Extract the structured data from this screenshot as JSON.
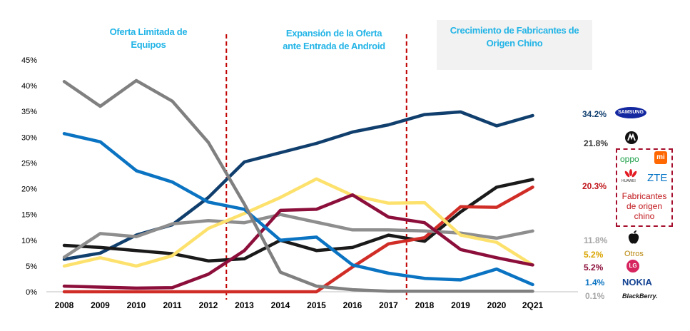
{
  "phases": [
    {
      "label": "Oferta Limitada de Equipos"
    },
    {
      "label": "Expansión de la Oferta ante Entrada de Android"
    },
    {
      "label": "Crecimiento de Fabricantes de Origen Chino"
    }
  ],
  "chart_data": {
    "type": "line",
    "categories": [
      "2008",
      "2009",
      "2010",
      "2011",
      "2012",
      "2013",
      "2014",
      "2015",
      "2016",
      "2017",
      "2018",
      "2019",
      "2020",
      "2Q21"
    ],
    "y_ticks": [
      "0%",
      "5%",
      "10%",
      "15%",
      "20%",
      "25%",
      "30%",
      "35%",
      "40%",
      "45%"
    ],
    "ylim": [
      0,
      45
    ],
    "grid": false,
    "phase_dividers_after": [
      "2012",
      "2017"
    ],
    "series": [
      {
        "brand": "Samsung",
        "color": "#103f6e",
        "end_label": "34.2%",
        "values": [
          6.3,
          7.5,
          11,
          13,
          18.3,
          25.2,
          27,
          28.8,
          31,
          32.4,
          34.4,
          34.9,
          32.2,
          34.2
        ]
      },
      {
        "brand": "Motorola",
        "color": "#1a1a1a",
        "end_label": "21.8%",
        "values": [
          9,
          8.6,
          8,
          7.4,
          6,
          6.4,
          10,
          8,
          8.6,
          11,
          9.8,
          15.5,
          20.3,
          21.8
        ]
      },
      {
        "brand": "Chinese manufacturers",
        "color": "#d02d27",
        "end_label": "20.3%",
        "values": [
          0,
          0,
          0,
          0,
          0,
          0,
          0,
          0,
          4.8,
          9.3,
          10.5,
          16.5,
          16.4,
          20.3
        ]
      },
      {
        "brand": "Apple",
        "color": "#8e8e8e",
        "end_label": "11.8%",
        "values": [
          6.7,
          11.3,
          10.7,
          13.2,
          13.8,
          13.4,
          15,
          13.5,
          12,
          12,
          11.8,
          11.4,
          10.4,
          11.8
        ]
      },
      {
        "brand": "Otros",
        "color": "#fde16d",
        "end_label": "5.2%",
        "values": [
          5,
          6.6,
          5,
          7,
          12.3,
          15.2,
          18.3,
          21.9,
          18.7,
          17.2,
          17.3,
          11,
          9.6,
          5.2
        ]
      },
      {
        "brand": "LG",
        "color": "#8c0e3a",
        "end_label": "5.2%",
        "values": [
          1.1,
          0.9,
          0.7,
          0.8,
          3.4,
          8,
          15.8,
          16,
          18.8,
          14.5,
          13.4,
          8.2,
          6.6,
          5.2
        ]
      },
      {
        "brand": "Nokia",
        "color": "#0a73c2",
        "end_label": "1.4%",
        "values": [
          30.7,
          29.1,
          23.5,
          21.3,
          17.4,
          16,
          10,
          10.6,
          5.2,
          3.6,
          2.6,
          2.3,
          4.4,
          1.4
        ]
      },
      {
        "brand": "BlackBerry",
        "color": "#808080",
        "end_label": "0.1%",
        "values": [
          40.8,
          36,
          41,
          37,
          29,
          17,
          3.8,
          1.1,
          0.4,
          0.1,
          0.1,
          0.1,
          0.1,
          0.1
        ]
      }
    ]
  },
  "brands": {
    "samsung": "SAMSUNG",
    "xiaomi": "mi",
    "oppo": "oppo",
    "huawei": "HUAWEI",
    "zte": "ZTE",
    "otros": "Otros",
    "lg": "LG",
    "nokia": "NOKIA",
    "blackberry": "BlackBerry."
  },
  "chinese_group_label": "Fabricantes de origen chino"
}
